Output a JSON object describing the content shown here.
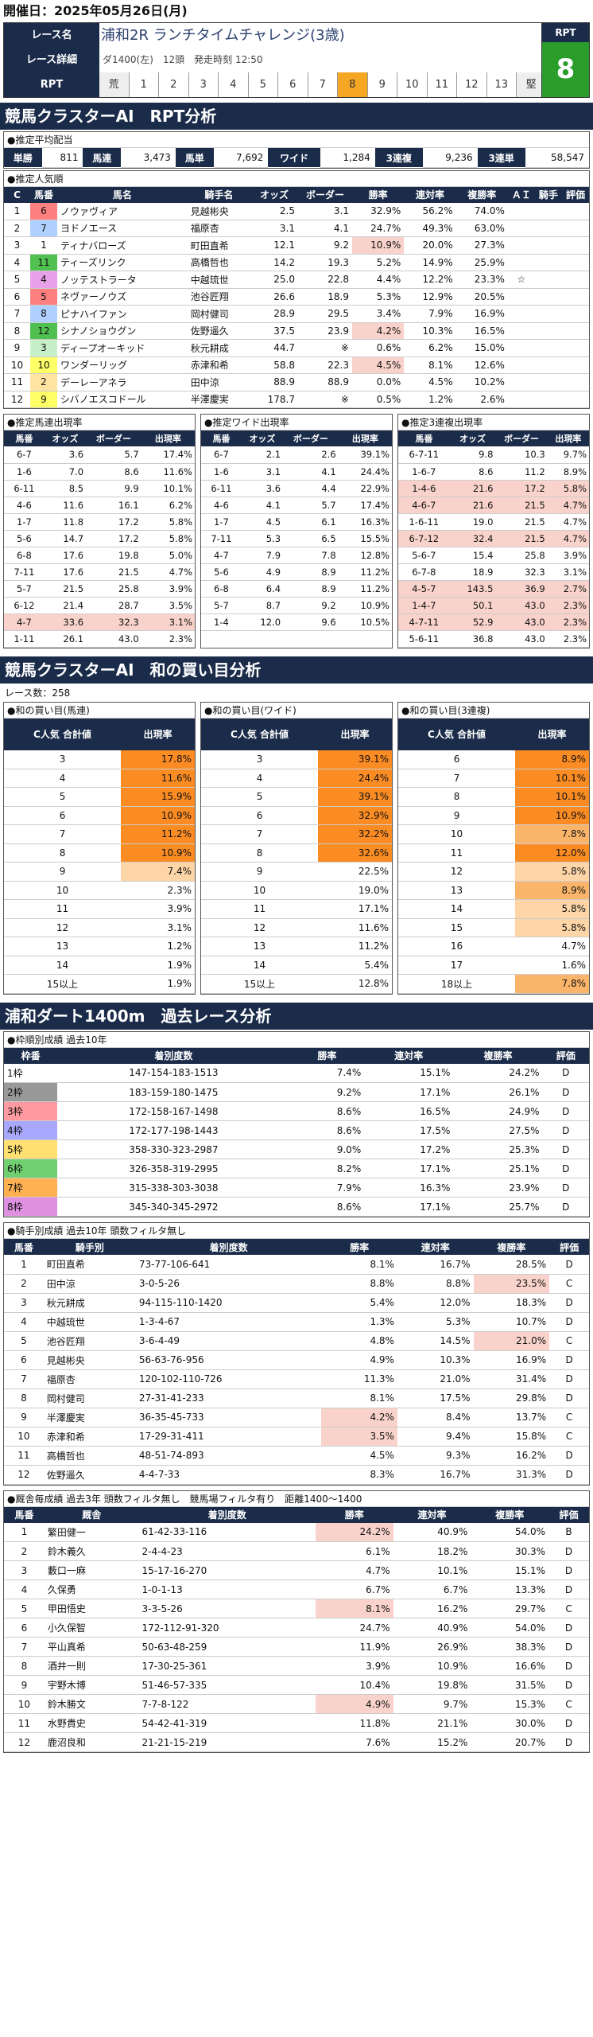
{
  "header": {
    "date_label": "開催日：2025年05月26日(月)"
  },
  "race": {
    "name_label": "レース名",
    "name": "浦和2R ランチタイムチャレンジ(3歳)",
    "detail_label": "レース詳細",
    "detail": "ダ1400(左)　12頭　発走時刻 12:50",
    "rpt_label": "RPT",
    "rpt_scale": [
      "荒",
      "1",
      "2",
      "3",
      "4",
      "5",
      "6",
      "7",
      "8",
      "9",
      "10",
      "11",
      "12",
      "13",
      "堅"
    ],
    "rpt_value": "8",
    "rpt_box_label": "RPT"
  },
  "sec1": {
    "title": "競馬クラスターAI　RPT分析"
  },
  "avg": {
    "title": "●推定平均配当",
    "items": [
      [
        "単勝",
        "811"
      ],
      [
        "馬連",
        "3,473"
      ],
      [
        "馬単",
        "7,692"
      ],
      [
        "ワイド",
        "1,284"
      ],
      [
        "3連複",
        "9,236"
      ],
      [
        "3連単",
        "58,547"
      ]
    ]
  },
  "fav": {
    "title": "●推定人気順",
    "headers": [
      "C",
      "馬番",
      "馬名",
      "騎手名",
      "オッズ",
      "ボーダー",
      "勝率",
      "連対率",
      "複勝率",
      "ＡＩ",
      "騎手",
      "評価"
    ],
    "rows": [
      [
        "1",
        "6",
        "ノウァヴィア",
        "見越彬央",
        "2.5",
        "3.1",
        "32.9%",
        "56.2%",
        "74.0%",
        "",
        "",
        ""
      ],
      [
        "2",
        "7",
        "ヨドノエース",
        "福原杏",
        "3.1",
        "4.1",
        "24.7%",
        "49.3%",
        "63.0%",
        "",
        "",
        ""
      ],
      [
        "3",
        "1",
        "ティナバローズ",
        "町田直希",
        "12.1",
        "9.2",
        "10.9%",
        "20.0%",
        "27.3%",
        "",
        "",
        ""
      ],
      [
        "4",
        "11",
        "ティーズリンク",
        "高橋哲也",
        "14.2",
        "19.3",
        "5.2%",
        "14.9%",
        "25.9%",
        "",
        "",
        ""
      ],
      [
        "5",
        "4",
        "ノッテストラータ",
        "中越琉世",
        "25.0",
        "22.8",
        "4.4%",
        "12.2%",
        "23.3%",
        "☆",
        "",
        ""
      ],
      [
        "6",
        "5",
        "ネヴァーノウズ",
        "池谷匠翔",
        "26.6",
        "18.9",
        "5.3%",
        "12.9%",
        "20.5%",
        "",
        "",
        ""
      ],
      [
        "7",
        "8",
        "ピナハイファン",
        "岡村健司",
        "28.9",
        "29.5",
        "3.4%",
        "7.9%",
        "16.9%",
        "",
        "",
        ""
      ],
      [
        "8",
        "12",
        "シナノショウグン",
        "佐野遥久",
        "37.5",
        "23.9",
        "4.2%",
        "10.3%",
        "16.5%",
        "",
        "",
        ""
      ],
      [
        "9",
        "3",
        "ディープオーキッド",
        "秋元耕成",
        "44.7",
        "※",
        "0.6%",
        "6.2%",
        "15.0%",
        "",
        "",
        ""
      ],
      [
        "10",
        "10",
        "ワンダーリッグ",
        "赤津和希",
        "58.8",
        "22.3",
        "4.5%",
        "8.1%",
        "12.6%",
        "",
        "",
        ""
      ],
      [
        "11",
        "2",
        "デーレーアネラ",
        "田中涼",
        "88.9",
        "88.9",
        "0.0%",
        "4.5%",
        "10.2%",
        "",
        "",
        ""
      ],
      [
        "12",
        "9",
        "シバノエスコドール",
        "半澤慶実",
        "178.7",
        "※",
        "0.5%",
        "1.2%",
        "2.6%",
        "",
        "",
        ""
      ]
    ]
  },
  "umaren": {
    "title": "●推定馬連出現率",
    "headers": [
      "馬番",
      "オッズ",
      "ボーダー",
      "出現率"
    ],
    "rows": [
      [
        "6-7",
        "3.6",
        "5.7",
        "17.4%"
      ],
      [
        "1-6",
        "7.0",
        "8.6",
        "11.6%"
      ],
      [
        "6-11",
        "8.5",
        "9.9",
        "10.1%"
      ],
      [
        "4-6",
        "11.6",
        "16.1",
        "6.2%"
      ],
      [
        "1-7",
        "11.8",
        "17.2",
        "5.8%"
      ],
      [
        "5-6",
        "14.7",
        "17.2",
        "5.8%"
      ],
      [
        "6-8",
        "17.6",
        "19.8",
        "5.0%"
      ],
      [
        "7-11",
        "17.6",
        "21.5",
        "4.7%"
      ],
      [
        "5-7",
        "21.5",
        "25.8",
        "3.9%"
      ],
      [
        "6-12",
        "21.4",
        "28.7",
        "3.5%"
      ],
      [
        "4-7",
        "33.6",
        "32.3",
        "3.1%"
      ],
      [
        "1-11",
        "26.1",
        "43.0",
        "2.3%"
      ]
    ]
  },
  "wide": {
    "title": "●推定ワイド出現率",
    "headers": [
      "馬番",
      "オッズ",
      "ボーダー",
      "出現率"
    ],
    "rows": [
      [
        "6-7",
        "2.1",
        "2.6",
        "39.1%"
      ],
      [
        "1-6",
        "3.1",
        "4.1",
        "24.4%"
      ],
      [
        "6-11",
        "3.6",
        "4.4",
        "22.9%"
      ],
      [
        "4-6",
        "4.1",
        "5.7",
        "17.4%"
      ],
      [
        "1-7",
        "4.5",
        "6.1",
        "16.3%"
      ],
      [
        "7-11",
        "5.3",
        "6.5",
        "15.5%"
      ],
      [
        "4-7",
        "7.9",
        "7.8",
        "12.8%"
      ],
      [
        "5-6",
        "4.9",
        "8.9",
        "11.2%"
      ],
      [
        "6-8",
        "6.4",
        "8.9",
        "11.2%"
      ],
      [
        "5-7",
        "8.7",
        "9.2",
        "10.9%"
      ],
      [
        "1-4",
        "12.0",
        "9.6",
        "10.5%"
      ]
    ]
  },
  "trio": {
    "title": "●推定3連複出現率",
    "headers": [
      "馬番",
      "オッズ",
      "ボーダー",
      "出現率"
    ],
    "rows": [
      [
        "6-7-11",
        "9.8",
        "10.3",
        "9.7%"
      ],
      [
        "1-6-7",
        "8.6",
        "11.2",
        "8.9%"
      ],
      [
        "1-4-6",
        "21.6",
        "17.2",
        "5.8%"
      ],
      [
        "4-6-7",
        "21.6",
        "21.5",
        "4.7%"
      ],
      [
        "1-6-11",
        "19.0",
        "21.5",
        "4.7%"
      ],
      [
        "6-7-12",
        "32.4",
        "21.5",
        "4.7%"
      ],
      [
        "5-6-7",
        "15.4",
        "25.8",
        "3.9%"
      ],
      [
        "6-7-8",
        "18.9",
        "32.3",
        "3.1%"
      ],
      [
        "4-5-7",
        "143.5",
        "36.9",
        "2.7%"
      ],
      [
        "1-4-7",
        "50.1",
        "43.0",
        "2.3%"
      ],
      [
        "4-7-11",
        "52.9",
        "43.0",
        "2.3%"
      ],
      [
        "5-6-11",
        "36.8",
        "43.0",
        "2.3%"
      ]
    ]
  },
  "sec2": {
    "title": "競馬クラスターAI　和の買い目分析",
    "count": "レース数：258"
  },
  "wa_umaren": {
    "title": "●和の買い目(馬連)",
    "headers": [
      "C人気\n合計値",
      "出現率"
    ],
    "rows": [
      [
        "3",
        "17.8%"
      ],
      [
        "4",
        "11.6%"
      ],
      [
        "5",
        "15.9%"
      ],
      [
        "6",
        "10.9%"
      ],
      [
        "7",
        "11.2%"
      ],
      [
        "8",
        "10.9%"
      ],
      [
        "9",
        "7.4%"
      ],
      [
        "10",
        "2.3%"
      ],
      [
        "11",
        "3.9%"
      ],
      [
        "12",
        "3.1%"
      ],
      [
        "13",
        "1.2%"
      ],
      [
        "14",
        "1.9%"
      ],
      [
        "15以上",
        "1.9%"
      ]
    ]
  },
  "wa_wide": {
    "title": "●和の買い目(ワイド)",
    "headers": [
      "C人気\n合計値",
      "出現率"
    ],
    "rows": [
      [
        "3",
        "39.1%"
      ],
      [
        "4",
        "24.4%"
      ],
      [
        "5",
        "39.1%"
      ],
      [
        "6",
        "32.9%"
      ],
      [
        "7",
        "32.2%"
      ],
      [
        "8",
        "32.6%"
      ],
      [
        "9",
        "22.5%"
      ],
      [
        "10",
        "19.0%"
      ],
      [
        "11",
        "17.1%"
      ],
      [
        "12",
        "11.6%"
      ],
      [
        "13",
        "11.2%"
      ],
      [
        "14",
        "5.4%"
      ],
      [
        "15以上",
        "12.8%"
      ]
    ]
  },
  "wa_trio": {
    "title": "●和の買い目(3連複)",
    "headers": [
      "C人気\n合計値",
      "出現率"
    ],
    "rows": [
      [
        "6",
        "8.9%"
      ],
      [
        "7",
        "10.1%"
      ],
      [
        "8",
        "10.1%"
      ],
      [
        "9",
        "10.9%"
      ],
      [
        "10",
        "7.8%"
      ],
      [
        "11",
        "12.0%"
      ],
      [
        "12",
        "5.8%"
      ],
      [
        "13",
        "8.9%"
      ],
      [
        "14",
        "5.8%"
      ],
      [
        "15",
        "5.8%"
      ],
      [
        "16",
        "4.7%"
      ],
      [
        "17",
        "1.6%"
      ],
      [
        "18以上",
        "7.8%"
      ]
    ]
  },
  "sec3": {
    "title": "浦和ダート1400m　過去レース分析"
  },
  "frame": {
    "title": "●枠順別成績 過去10年",
    "headers": [
      "枠番",
      "着別度数",
      "勝率",
      "連対率",
      "複勝率",
      "評価"
    ],
    "rows": [
      [
        "1枠",
        "147-154-183-1513",
        "7.4%",
        "15.1%",
        "24.2%",
        "D"
      ],
      [
        "2枠",
        "183-159-180-1475",
        "9.2%",
        "17.1%",
        "26.1%",
        "D"
      ],
      [
        "3枠",
        "172-158-167-1498",
        "8.6%",
        "16.5%",
        "24.9%",
        "D"
      ],
      [
        "4枠",
        "172-177-198-1443",
        "8.6%",
        "17.5%",
        "27.5%",
        "D"
      ],
      [
        "5枠",
        "358-330-323-2987",
        "9.0%",
        "17.2%",
        "25.3%",
        "D"
      ],
      [
        "6枠",
        "326-358-319-2995",
        "8.2%",
        "17.1%",
        "25.1%",
        "D"
      ],
      [
        "7枠",
        "315-338-303-3038",
        "7.9%",
        "16.3%",
        "23.9%",
        "D"
      ],
      [
        "8枠",
        "345-340-345-2972",
        "8.6%",
        "17.1%",
        "25.7%",
        "D"
      ]
    ]
  },
  "jockey": {
    "title": "●騎手別成績 過去10年 頭数フィルタ無し",
    "headers": [
      "馬番",
      "騎手別",
      "着別度数",
      "勝率",
      "連対率",
      "複勝率",
      "評価"
    ],
    "rows": [
      [
        "1",
        "町田直希",
        "73-77-106-641",
        "8.1%",
        "16.7%",
        "28.5%",
        "D"
      ],
      [
        "2",
        "田中涼",
        "3-0-5-26",
        "8.8%",
        "8.8%",
        "23.5%",
        "C"
      ],
      [
        "3",
        "秋元耕成",
        "94-115-110-1420",
        "5.4%",
        "12.0%",
        "18.3%",
        "D"
      ],
      [
        "4",
        "中越琉世",
        "1-3-4-67",
        "1.3%",
        "5.3%",
        "10.7%",
        "D"
      ],
      [
        "5",
        "池谷匠翔",
        "3-6-4-49",
        "4.8%",
        "14.5%",
        "21.0%",
        "C"
      ],
      [
        "6",
        "見越彬央",
        "56-63-76-956",
        "4.9%",
        "10.3%",
        "16.9%",
        "D"
      ],
      [
        "7",
        "福原杏",
        "120-102-110-726",
        "11.3%",
        "21.0%",
        "31.4%",
        "D"
      ],
      [
        "8",
        "岡村健司",
        "27-31-41-233",
        "8.1%",
        "17.5%",
        "29.8%",
        "D"
      ],
      [
        "9",
        "半澤慶実",
        "36-35-45-733",
        "4.2%",
        "8.4%",
        "13.7%",
        "C"
      ],
      [
        "10",
        "赤津和希",
        "17-29-31-411",
        "3.5%",
        "9.4%",
        "15.8%",
        "C"
      ],
      [
        "11",
        "高橋哲也",
        "48-51-74-893",
        "4.5%",
        "9.3%",
        "16.2%",
        "D"
      ],
      [
        "12",
        "佐野遥久",
        "4-4-7-33",
        "8.3%",
        "16.7%",
        "31.3%",
        "D"
      ]
    ]
  },
  "coach": {
    "title": "●厩舎毎成績 過去3年 頭数フィルタ無し　競馬場フィルタ有り　距離1400～1400",
    "headers": [
      "馬番",
      "厩舎",
      "着別度数",
      "勝率",
      "連対率",
      "複勝率",
      "評価"
    ],
    "rows": [
      [
        "1",
        "繁田健一",
        "61-42-33-116",
        "24.2%",
        "40.9%",
        "54.0%",
        "B"
      ],
      [
        "2",
        "鈴木義久",
        "2-4-4-23",
        "6.1%",
        "18.2%",
        "30.3%",
        "D"
      ],
      [
        "3",
        "藪口一麻",
        "15-17-16-270",
        "4.7%",
        "10.1%",
        "15.1%",
        "D"
      ],
      [
        "4",
        "久保勇",
        "1-0-1-13",
        "6.7%",
        "6.7%",
        "13.3%",
        "D"
      ],
      [
        "5",
        "甲田悟史",
        "3-3-5-26",
        "8.1%",
        "16.2%",
        "29.7%",
        "C"
      ],
      [
        "6",
        "小久保智",
        "172-112-91-320",
        "24.7%",
        "40.9%",
        "54.0%",
        "D"
      ],
      [
        "7",
        "平山真希",
        "50-63-48-259",
        "11.9%",
        "26.9%",
        "38.3%",
        "D"
      ],
      [
        "8",
        "酒井一則",
        "17-30-25-361",
        "3.9%",
        "10.9%",
        "16.6%",
        "D"
      ],
      [
        "9",
        "宇野木博",
        "51-46-57-335",
        "10.4%",
        "19.8%",
        "31.5%",
        "D"
      ],
      [
        "10",
        "鈴木勝文",
        "7-7-8-122",
        "4.9%",
        "9.7%",
        "15.3%",
        "C"
      ],
      [
        "11",
        "水野貴史",
        "54-42-41-319",
        "11.8%",
        "21.1%",
        "30.0%",
        "D"
      ],
      [
        "12",
        "鹿沼良和",
        "21-21-15-219",
        "7.6%",
        "15.2%",
        "20.7%",
        "D"
      ]
    ]
  }
}
